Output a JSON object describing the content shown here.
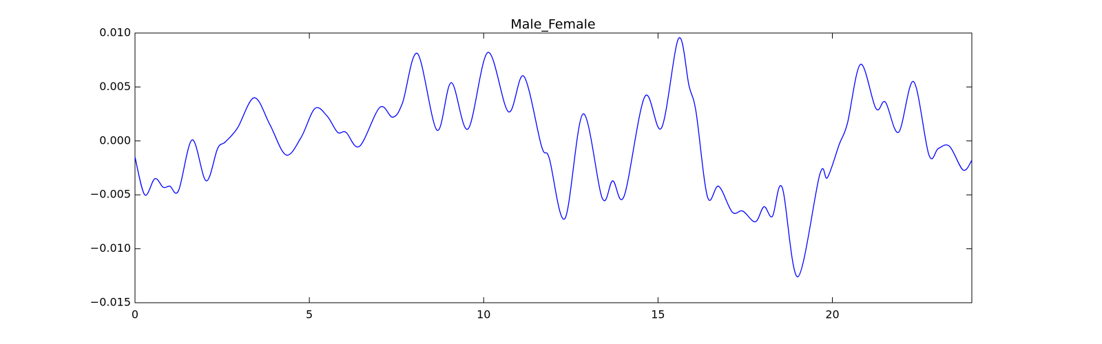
{
  "chart_data": {
    "type": "line",
    "title": "Male_Female",
    "x": [
      0,
      0.28,
      0.57,
      0.81,
      1.0,
      1.25,
      1.64,
      2.04,
      2.37,
      2.59,
      2.94,
      3.42,
      3.87,
      4.33,
      4.76,
      5.16,
      5.51,
      5.81,
      6.05,
      6.44,
      7.02,
      7.39,
      7.67,
      8.1,
      8.66,
      9.07,
      9.55,
      10.12,
      10.71,
      11.15,
      11.66,
      11.88,
      12.33,
      12.85,
      13.4,
      13.7,
      14.03,
      14.62,
      15.1,
      15.59,
      15.89,
      16.09,
      16.42,
      16.74,
      17.13,
      17.43,
      17.79,
      18.04,
      18.28,
      18.56,
      19.01,
      19.64,
      19.86,
      20.2,
      20.43,
      20.81,
      21.25,
      21.52,
      21.9,
      22.33,
      22.77,
      23.04,
      23.36,
      23.75,
      24.0
    ],
    "series": [
      {
        "color": "#0000ff",
        "values": [
          -0.0015,
          -0.005,
          -0.0035,
          -0.0043,
          -0.0042,
          -0.0046,
          0.0001,
          -0.0037,
          -0.0007,
          -0.0001,
          0.0012,
          0.004,
          0.0015,
          -0.0013,
          0.0003,
          0.003,
          0.0023,
          0.0008,
          0.0008,
          -0.0005,
          0.0031,
          0.0022,
          0.0035,
          0.0081,
          0.001,
          0.0054,
          0.0011,
          0.0082,
          0.0027,
          0.006,
          -0.0005,
          -0.0016,
          -0.0072,
          0.0025,
          -0.0053,
          -0.0037,
          -0.0051,
          0.0041,
          0.0012,
          0.0095,
          0.0051,
          0.0027,
          -0.0052,
          -0.0042,
          -0.0066,
          -0.0065,
          -0.0075,
          -0.0061,
          -0.007,
          -0.0043,
          -0.0126,
          -0.0031,
          -0.0034,
          -0.0003,
          0.0016,
          0.0071,
          0.003,
          0.0036,
          0.0008,
          0.0055,
          -0.0013,
          -0.0007,
          -0.0005,
          -0.0027,
          -0.0018
        ]
      }
    ],
    "xlim": [
      0,
      24
    ],
    "xticks": [
      0,
      5,
      10,
      15,
      20
    ],
    "ylim": [
      -0.015,
      0.01
    ],
    "yticks": [
      {
        "value": -0.015,
        "label": "−0.015"
      },
      {
        "value": -0.01,
        "label": "−0.010"
      },
      {
        "value": -0.005,
        "label": "−0.005"
      },
      {
        "value": 0,
        "label": "0.000"
      },
      0.005,
      {
        "value": 0.01,
        "label": "0.010"
      }
    ]
  }
}
